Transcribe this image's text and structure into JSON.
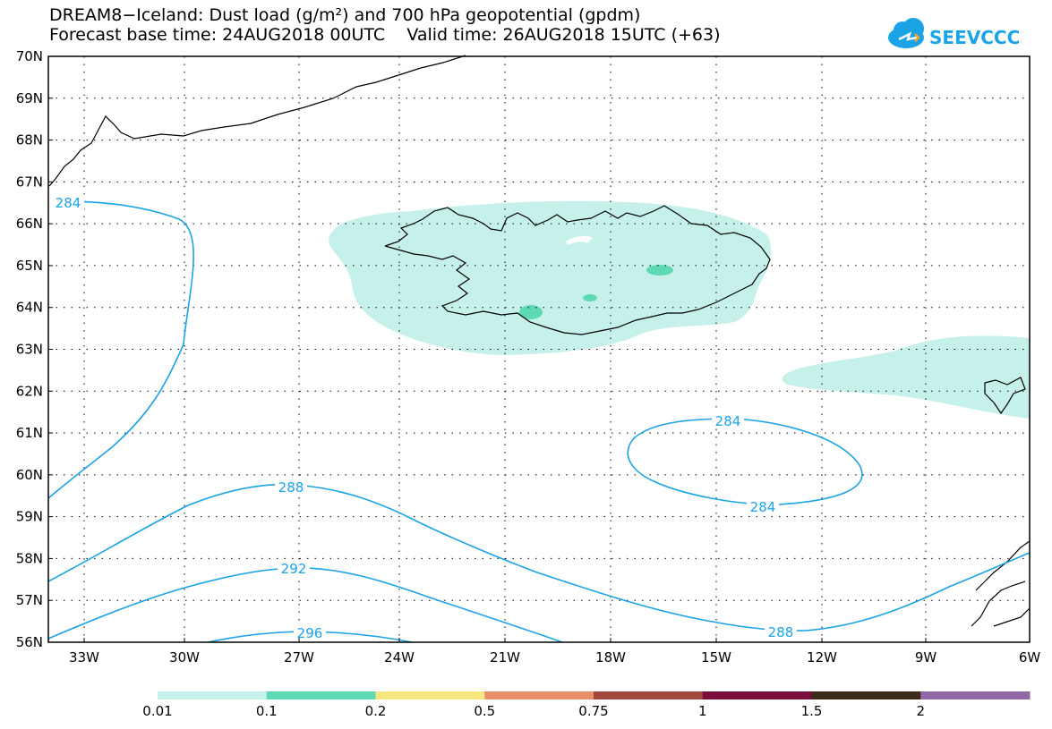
{
  "header": {
    "title_line1": "DREAM8−Iceland: Dust load (g/m²) and 700 hPa geopotential (gpdm)",
    "title_line2": "Forecast base time: 24AUG2018 00UTC    Valid time: 26AUG2018 15UTC (+63)"
  },
  "logo": {
    "text": "SEEVCCC",
    "icon": "cloud-icon"
  },
  "map": {
    "lat_labels": [
      "70N",
      "69N",
      "68N",
      "67N",
      "66N",
      "65N",
      "64N",
      "63N",
      "62N",
      "61N",
      "60N",
      "59N",
      "58N",
      "57N",
      "56N"
    ],
    "lon_labels": [
      "33W",
      "30W",
      "27W",
      "24W",
      "21W",
      "18W",
      "15W",
      "12W",
      "9W",
      "6W"
    ]
  },
  "contours": {
    "line_color": "#1aa3e6",
    "labels": [
      "284",
      "284",
      "284",
      "288",
      "288",
      "292",
      "296"
    ]
  },
  "colorbar": {
    "colors": [
      "#c6f1ea",
      "#5dd9b4",
      "#f7e77f",
      "#e9906a",
      "#a1473e",
      "#7a0e3a",
      "#3c2a1a",
      "#9068a4"
    ],
    "labels": [
      "0.01",
      "0.1",
      "0.2",
      "0.5",
      "0.75",
      "1",
      "1.5",
      "2"
    ]
  }
}
